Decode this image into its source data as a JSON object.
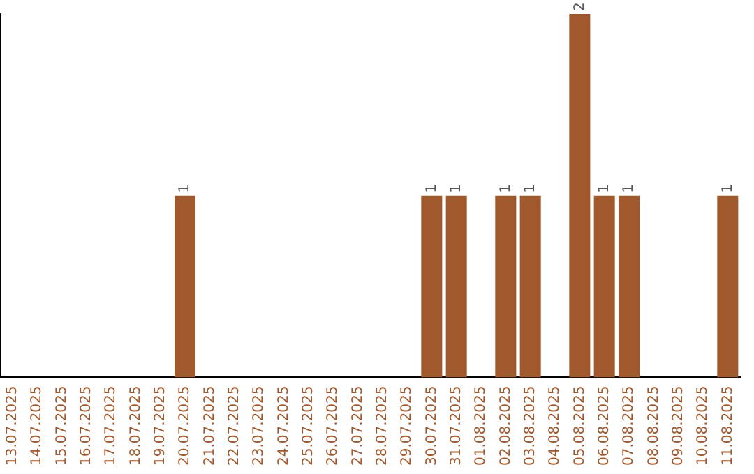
{
  "chart_data": {
    "type": "bar",
    "categories": [
      "13.07.2025",
      "14.07.2025",
      "15.07.2025",
      "16.07.2025",
      "17.07.2025",
      "18.07.2025",
      "19.07.2025",
      "20.07.2025",
      "21.07.2025",
      "22.07.2025",
      "23.07.2025",
      "24.07.2025",
      "25.07.2025",
      "26.07.2025",
      "27.07.2025",
      "28.07.2025",
      "29.07.2025",
      "30.07.2025",
      "31.07.2025",
      "01.08.2025",
      "02.08.2025",
      "03.08.2025",
      "04.08.2025",
      "05.08.2025",
      "06.08.2025",
      "07.08.2025",
      "08.08.2025",
      "09.08.2025",
      "10.08.2025",
      "11.08.2025"
    ],
    "values": [
      0,
      0,
      0,
      0,
      0,
      0,
      0,
      1,
      0,
      0,
      0,
      0,
      0,
      0,
      0,
      0,
      0,
      1,
      1,
      0,
      1,
      1,
      0,
      2,
      1,
      1,
      0,
      0,
      0,
      1
    ],
    "value_labels": [
      null,
      null,
      null,
      null,
      null,
      null,
      null,
      "1",
      null,
      null,
      null,
      null,
      null,
      null,
      null,
      null,
      null,
      "1",
      "1",
      null,
      "1",
      "1",
      null,
      "2",
      "1",
      "1",
      null,
      null,
      null,
      "1"
    ],
    "color": "#a0582c",
    "grid": false,
    "legend": false,
    "tick_labels": "x"
  }
}
